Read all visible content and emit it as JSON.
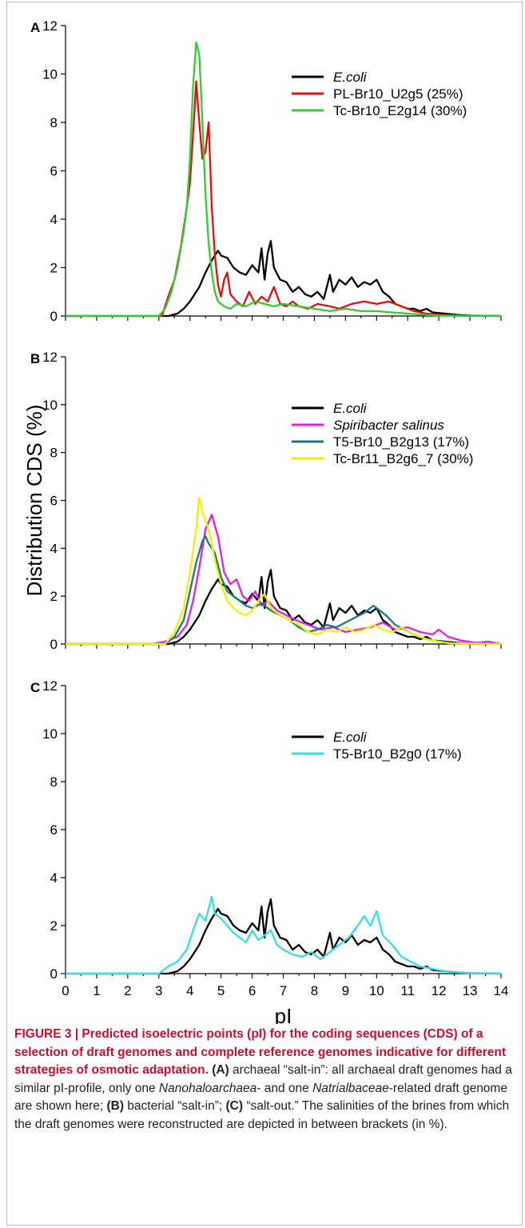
{
  "chart_data": [
    {
      "type": "line",
      "panel_label": "A",
      "xlim": [
        0,
        14
      ],
      "ylim": [
        0,
        12
      ],
      "x_ticks": [
        0,
        1,
        2,
        3,
        4,
        5,
        6,
        7,
        8,
        9,
        10,
        11,
        12,
        13,
        14
      ],
      "y_ticks": [
        0,
        2,
        4,
        6,
        8,
        10,
        12
      ],
      "legend_position": "top-right",
      "series": [
        {
          "name": "E.coli",
          "color": "#000000",
          "x": [
            0,
            3.3,
            3.6,
            3.8,
            4.0,
            4.3,
            4.5,
            4.7,
            4.9,
            5.0,
            5.2,
            5.4,
            5.6,
            5.8,
            6.0,
            6.2,
            6.3,
            6.4,
            6.5,
            6.6,
            6.7,
            6.9,
            7.1,
            7.3,
            7.5,
            7.7,
            7.9,
            8.1,
            8.3,
            8.5,
            8.6,
            8.8,
            9.0,
            9.2,
            9.4,
            9.6,
            9.8,
            10.0,
            10.2,
            10.4,
            10.6,
            10.8,
            11.0,
            11.2,
            11.4,
            11.6,
            11.8,
            12.2,
            12.6,
            13.0,
            14.0
          ],
          "y": [
            0,
            0,
            0.1,
            0.3,
            0.6,
            1.2,
            1.8,
            2.3,
            2.7,
            2.5,
            2.4,
            2.0,
            1.8,
            1.7,
            2.1,
            1.8,
            2.8,
            1.5,
            2.6,
            3.1,
            2.0,
            1.5,
            1.4,
            1.0,
            1.2,
            0.9,
            0.8,
            1.0,
            0.7,
            1.7,
            1.0,
            1.5,
            1.3,
            1.6,
            1.2,
            1.4,
            1.3,
            1.5,
            1.0,
            0.8,
            0.5,
            0.4,
            0.3,
            0.3,
            0.2,
            0.3,
            0.15,
            0.1,
            0.05,
            0.02,
            0
          ]
        },
        {
          "name": "PL-Br10_U2g5 (25%)",
          "color": "#e01010",
          "x": [
            0,
            3.1,
            3.3,
            3.5,
            3.7,
            3.9,
            4.0,
            4.1,
            4.2,
            4.3,
            4.4,
            4.5,
            4.6,
            4.7,
            4.8,
            4.9,
            5.0,
            5.1,
            5.2,
            5.3,
            5.5,
            5.7,
            5.9,
            6.1,
            6.3,
            6.5,
            6.7,
            6.9,
            7.1,
            7.3,
            7.5,
            7.8,
            8.1,
            8.5,
            8.8,
            9.2,
            9.6,
            10.0,
            10.4,
            10.8,
            11.2,
            11.6,
            12.0,
            12.5,
            14.0
          ],
          "y": [
            0,
            0,
            0.8,
            1.5,
            2.8,
            4.5,
            5.5,
            7.5,
            9.7,
            8.0,
            6.5,
            6.8,
            8.0,
            4.5,
            2.5,
            1.3,
            0.8,
            1.5,
            1.8,
            0.9,
            0.6,
            0.4,
            1.0,
            0.5,
            0.8,
            0.6,
            1.2,
            0.5,
            0.4,
            0.6,
            0.4,
            0.3,
            0.5,
            0.4,
            0.3,
            0.5,
            0.6,
            0.5,
            0.6,
            0.4,
            0.2,
            0.1,
            0.05,
            0.02,
            0
          ]
        },
        {
          "name": "Tc-Br10_E2g14 (30%)",
          "color": "#33cc33",
          "x": [
            0,
            3.0,
            3.2,
            3.4,
            3.6,
            3.8,
            3.9,
            4.0,
            4.1,
            4.2,
            4.3,
            4.4,
            4.5,
            4.6,
            4.7,
            4.8,
            4.9,
            5.1,
            5.3,
            5.5,
            5.8,
            6.1,
            6.4,
            6.7,
            7.0,
            7.5,
            8.0,
            8.5,
            9.0,
            9.5,
            10.0,
            10.5,
            11.0,
            11.5,
            12.0,
            14.0
          ],
          "y": [
            0,
            0,
            0.3,
            1.0,
            2.0,
            3.5,
            4.5,
            6.5,
            9.5,
            11.3,
            10.8,
            8.0,
            5.0,
            3.0,
            1.8,
            1.0,
            0.6,
            0.4,
            0.3,
            0.5,
            0.4,
            0.6,
            0.5,
            0.4,
            0.5,
            0.4,
            0.3,
            0.2,
            0.3,
            0.2,
            0.2,
            0.15,
            0.1,
            0.05,
            0.02,
            0
          ]
        }
      ]
    },
    {
      "type": "line",
      "panel_label": "B",
      "xlim": [
        0,
        14
      ],
      "ylim": [
        0,
        12
      ],
      "x_ticks": [
        0,
        1,
        2,
        3,
        4,
        5,
        6,
        7,
        8,
        9,
        10,
        11,
        12,
        13,
        14
      ],
      "y_ticks": [
        0,
        2,
        4,
        6,
        8,
        10,
        12
      ],
      "ylabel": "Distribution CDS (%)",
      "legend_position": "top-right",
      "series": [
        {
          "name": "E.coli",
          "color": "#000000",
          "x": [
            0,
            3.3,
            3.6,
            3.8,
            4.0,
            4.3,
            4.5,
            4.7,
            4.9,
            5.0,
            5.2,
            5.4,
            5.6,
            5.8,
            6.0,
            6.2,
            6.3,
            6.4,
            6.5,
            6.6,
            6.7,
            6.9,
            7.1,
            7.3,
            7.5,
            7.7,
            7.9,
            8.1,
            8.3,
            8.5,
            8.6,
            8.8,
            9.0,
            9.2,
            9.4,
            9.6,
            9.8,
            10.0,
            10.2,
            10.4,
            10.6,
            10.8,
            11.0,
            11.2,
            11.4,
            11.6,
            11.8,
            12.2,
            12.6,
            13.0,
            14.0
          ],
          "y": [
            0,
            0,
            0.1,
            0.3,
            0.6,
            1.2,
            1.8,
            2.3,
            2.7,
            2.5,
            2.4,
            2.0,
            1.8,
            1.7,
            2.1,
            1.8,
            2.8,
            1.5,
            2.6,
            3.1,
            2.0,
            1.5,
            1.4,
            1.0,
            1.2,
            0.9,
            0.8,
            1.0,
            0.7,
            1.7,
            1.0,
            1.5,
            1.3,
            1.6,
            1.2,
            1.4,
            1.3,
            1.5,
            1.0,
            0.8,
            0.5,
            0.4,
            0.3,
            0.3,
            0.2,
            0.3,
            0.15,
            0.1,
            0.05,
            0.02,
            0
          ]
        },
        {
          "name": "Spiribacter salinus",
          "color": "#e020e0",
          "x": [
            0,
            2.8,
            3.2,
            3.6,
            3.9,
            4.1,
            4.3,
            4.5,
            4.7,
            4.9,
            5.1,
            5.3,
            5.5,
            5.7,
            5.9,
            6.1,
            6.3,
            6.5,
            6.8,
            7.1,
            7.4,
            7.8,
            8.2,
            8.6,
            9.0,
            9.4,
            9.8,
            10.2,
            10.6,
            11.0,
            11.4,
            11.8,
            12.0,
            12.3,
            12.7,
            13.2,
            13.6,
            14.0
          ],
          "y": [
            0,
            0,
            0.1,
            0.3,
            0.8,
            1.8,
            3.2,
            4.8,
            5.4,
            4.5,
            3.0,
            2.5,
            2.7,
            2.0,
            1.8,
            2.2,
            1.6,
            1.8,
            1.4,
            1.2,
            1.0,
            0.8,
            0.6,
            0.7,
            0.5,
            0.6,
            0.7,
            0.9,
            0.6,
            0.7,
            0.5,
            0.4,
            0.6,
            0.3,
            0.15,
            0.05,
            0.1,
            0
          ]
        },
        {
          "name": "T5-Br10_B2g13 (17%)",
          "color": "#1a7a7a",
          "x": [
            0,
            3.2,
            3.5,
            3.8,
            4.0,
            4.2,
            4.4,
            4.5,
            4.6,
            4.8,
            5.0,
            5.2,
            5.4,
            5.6,
            5.8,
            6.0,
            6.3,
            6.6,
            6.9,
            7.2,
            7.5,
            7.8,
            8.1,
            8.4,
            8.7,
            9.0,
            9.3,
            9.6,
            9.9,
            10.1,
            10.3,
            10.6,
            10.9,
            11.2,
            11.6,
            12.0,
            12.3,
            14.0
          ],
          "y": [
            0,
            0,
            0.3,
            1.0,
            2.2,
            3.4,
            4.3,
            4.5,
            4.2,
            3.8,
            2.8,
            2.2,
            2.0,
            1.8,
            1.6,
            1.5,
            1.7,
            1.4,
            1.2,
            1.0,
            0.7,
            0.5,
            0.6,
            0.8,
            0.7,
            0.9,
            1.1,
            1.3,
            1.6,
            1.4,
            1.2,
            0.8,
            0.6,
            0.4,
            0.2,
            0.1,
            0.03,
            0
          ]
        },
        {
          "name": "Tc-Br11_B2g6_7 (30%)",
          "color": "#f2f200",
          "x": [
            0,
            3.2,
            3.5,
            3.8,
            4.0,
            4.2,
            4.3,
            4.4,
            4.6,
            4.8,
            5.0,
            5.2,
            5.4,
            5.6,
            5.8,
            6.0,
            6.2,
            6.4,
            6.6,
            6.9,
            7.2,
            7.5,
            7.8,
            8.1,
            8.4,
            8.7,
            9.0,
            9.3,
            9.6,
            9.9,
            10.2,
            10.5,
            10.8,
            11.2,
            11.6,
            12.0,
            12.4,
            14.0
          ],
          "y": [
            0,
            0,
            0.5,
            1.5,
            3.0,
            4.8,
            6.1,
            5.5,
            4.8,
            3.5,
            2.5,
            1.8,
            1.5,
            1.3,
            1.2,
            1.4,
            1.8,
            2.1,
            1.5,
            1.2,
            1.0,
            0.8,
            0.5,
            0.4,
            0.6,
            0.5,
            0.7,
            0.5,
            0.6,
            0.8,
            0.6,
            0.5,
            0.7,
            0.4,
            0.2,
            0.1,
            0.03,
            0
          ]
        }
      ]
    },
    {
      "type": "line",
      "panel_label": "C",
      "xlim": [
        0,
        14
      ],
      "ylim": [
        0,
        12
      ],
      "x_ticks": [
        0,
        1,
        2,
        3,
        4,
        5,
        6,
        7,
        8,
        9,
        10,
        11,
        12,
        13,
        14
      ],
      "y_ticks": [
        0,
        2,
        4,
        6,
        8,
        10,
        12
      ],
      "xlabel": "pI",
      "legend_position": "top-right",
      "series": [
        {
          "name": "E.coli",
          "color": "#000000",
          "x": [
            0,
            3.3,
            3.6,
            3.8,
            4.0,
            4.3,
            4.5,
            4.7,
            4.9,
            5.0,
            5.2,
            5.4,
            5.6,
            5.8,
            6.0,
            6.2,
            6.3,
            6.4,
            6.5,
            6.6,
            6.7,
            6.9,
            7.1,
            7.3,
            7.5,
            7.7,
            7.9,
            8.1,
            8.3,
            8.5,
            8.6,
            8.8,
            9.0,
            9.2,
            9.4,
            9.6,
            9.8,
            10.0,
            10.2,
            10.4,
            10.6,
            10.8,
            11.0,
            11.2,
            11.4,
            11.6,
            11.8,
            12.2,
            12.6,
            13.0,
            14.0
          ],
          "y": [
            0,
            0,
            0.1,
            0.3,
            0.6,
            1.2,
            1.8,
            2.3,
            2.7,
            2.5,
            2.4,
            2.0,
            1.8,
            1.7,
            2.1,
            1.8,
            2.8,
            1.5,
            2.6,
            3.1,
            2.0,
            1.5,
            1.4,
            1.0,
            1.2,
            0.9,
            0.8,
            1.0,
            0.7,
            1.7,
            1.0,
            1.5,
            1.3,
            1.6,
            1.2,
            1.4,
            1.3,
            1.5,
            1.0,
            0.8,
            0.5,
            0.4,
            0.3,
            0.3,
            0.2,
            0.3,
            0.15,
            0.1,
            0.05,
            0.02,
            0
          ]
        },
        {
          "name": "T5-Br10_B2g0 (17%)",
          "color": "#33e0e0",
          "x": [
            0,
            3.0,
            3.3,
            3.6,
            3.9,
            4.1,
            4.3,
            4.5,
            4.6,
            4.7,
            4.8,
            5.0,
            5.2,
            5.4,
            5.6,
            5.8,
            6.0,
            6.2,
            6.4,
            6.6,
            6.8,
            7.0,
            7.3,
            7.6,
            7.9,
            8.2,
            8.5,
            8.8,
            9.1,
            9.4,
            9.6,
            9.8,
            10.0,
            10.2,
            10.5,
            10.8,
            11.1,
            11.4,
            11.8,
            12.2,
            12.6,
            13.0,
            14.0
          ],
          "y": [
            0,
            0,
            0.3,
            0.5,
            1.0,
            1.8,
            2.5,
            2.2,
            2.7,
            3.2,
            2.5,
            2.3,
            2.0,
            1.7,
            1.5,
            1.3,
            1.8,
            1.4,
            1.6,
            1.8,
            1.2,
            1.0,
            0.8,
            0.7,
            0.9,
            0.6,
            0.9,
            1.2,
            1.5,
            2.0,
            2.4,
            2.0,
            2.6,
            1.6,
            1.2,
            0.7,
            0.5,
            0.3,
            0.2,
            0.1,
            0.05,
            0.02,
            0
          ]
        }
      ]
    }
  ],
  "caption": {
    "title": "FIGURE 3 | Predicted isoelectric points (pI) for the coding sequences (CDS) of a selection of draft genomes and complete reference genomes indicative for different strategies of osmotic adaptation.",
    "a_label": "(A)",
    "a_text_1": " archaeal “salt-in”: all archaeal draft genomes had a similar pI-profile, only one ",
    "a_italic_1": "Nanohaloarchaea",
    "a_text_2": "- and one ",
    "a_italic_2": "Natrialbaceae",
    "a_text_3": "-related draft genome are shown here; ",
    "b_label": "(B)",
    "b_text": " bacterial “salt-in”; ",
    "c_label": "(C)",
    "c_text": " “salt-out.” The salinities of the brines from which the draft genomes were reconstructed are depicted in between brackets (in %)."
  }
}
